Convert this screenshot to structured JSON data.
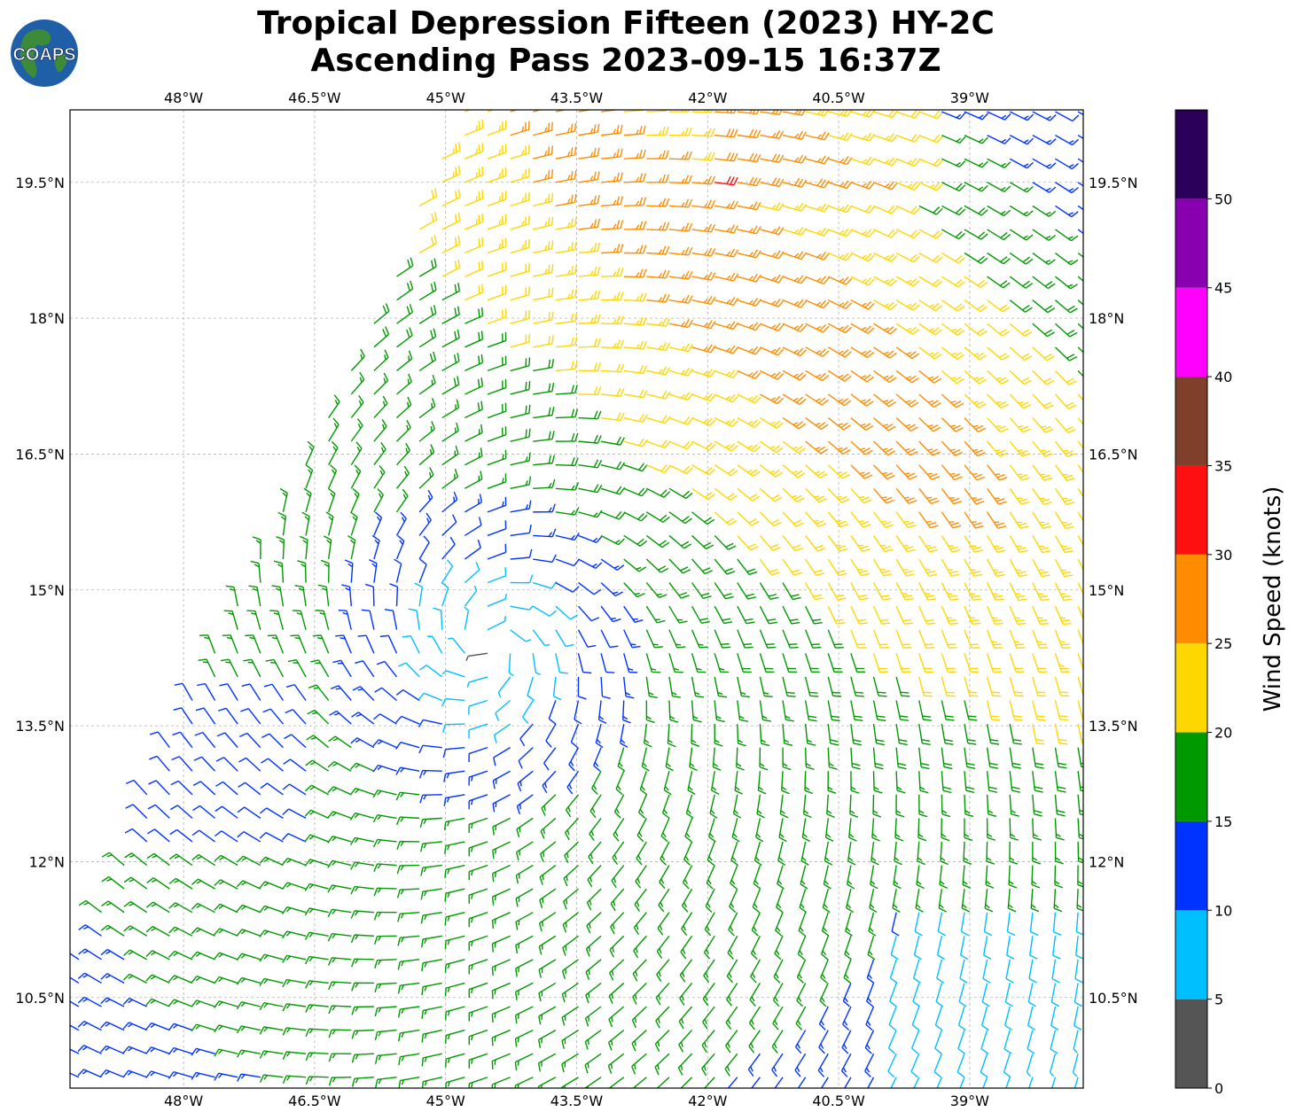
{
  "title": {
    "line1": "Tropical Depression Fifteen (2023) HY-2C",
    "line2": "Ascending Pass 2023-09-15 16:37Z"
  },
  "logo": {
    "text": "COAPS",
    "ocean_color": "#1f5fa8",
    "land_color": "#3d8a3a"
  },
  "map": {
    "lon_range": [
      -49.3,
      -37.7
    ],
    "lat_range": [
      9.5,
      20.3
    ],
    "lon_ticks": [
      {
        "value": -48,
        "label": "48°W"
      },
      {
        "value": -46.5,
        "label": "46.5°W"
      },
      {
        "value": -45,
        "label": "45°W"
      },
      {
        "value": -43.5,
        "label": "43.5°W"
      },
      {
        "value": -42,
        "label": "42°W"
      },
      {
        "value": -40.5,
        "label": "40.5°W"
      },
      {
        "value": -39,
        "label": "39°W"
      }
    ],
    "lat_ticks": [
      {
        "value": 19.5,
        "label": "19.5°N"
      },
      {
        "value": 18,
        "label": "18°N"
      },
      {
        "value": 16.5,
        "label": "16.5°N"
      },
      {
        "value": 15,
        "label": "15°N"
      },
      {
        "value": 13.5,
        "label": "13.5°N"
      },
      {
        "value": 12,
        "label": "12°N"
      },
      {
        "value": 10.5,
        "label": "10.5°N"
      }
    ],
    "gridlines": true,
    "storm_center": {
      "lon": -44.5,
      "lat": 14.4
    },
    "wind_symbol": "barb"
  },
  "colorbar": {
    "label": "Wind Speed (knots)",
    "bins": [
      {
        "min": 0,
        "max": 5,
        "color": "#555555"
      },
      {
        "min": 5,
        "max": 10,
        "color": "#00bfff"
      },
      {
        "min": 10,
        "max": 15,
        "color": "#0033ff"
      },
      {
        "min": 15,
        "max": 20,
        "color": "#009900"
      },
      {
        "min": 20,
        "max": 25,
        "color": "#ffd700"
      },
      {
        "min": 25,
        "max": 30,
        "color": "#ff8c00"
      },
      {
        "min": 30,
        "max": 35,
        "color": "#ff1010"
      },
      {
        "min": 35,
        "max": 40,
        "color": "#7f3f2a"
      },
      {
        "min": 40,
        "max": 45,
        "color": "#ff00ff"
      },
      {
        "min": 45,
        "max": 50,
        "color": "#8800b0"
      },
      {
        "min": 50,
        "max": 55,
        "color": "#2a005a"
      }
    ],
    "tick_labels": [
      "0",
      "5",
      "10",
      "15",
      "20",
      "25",
      "30",
      "35",
      "40",
      "45",
      "50"
    ]
  }
}
